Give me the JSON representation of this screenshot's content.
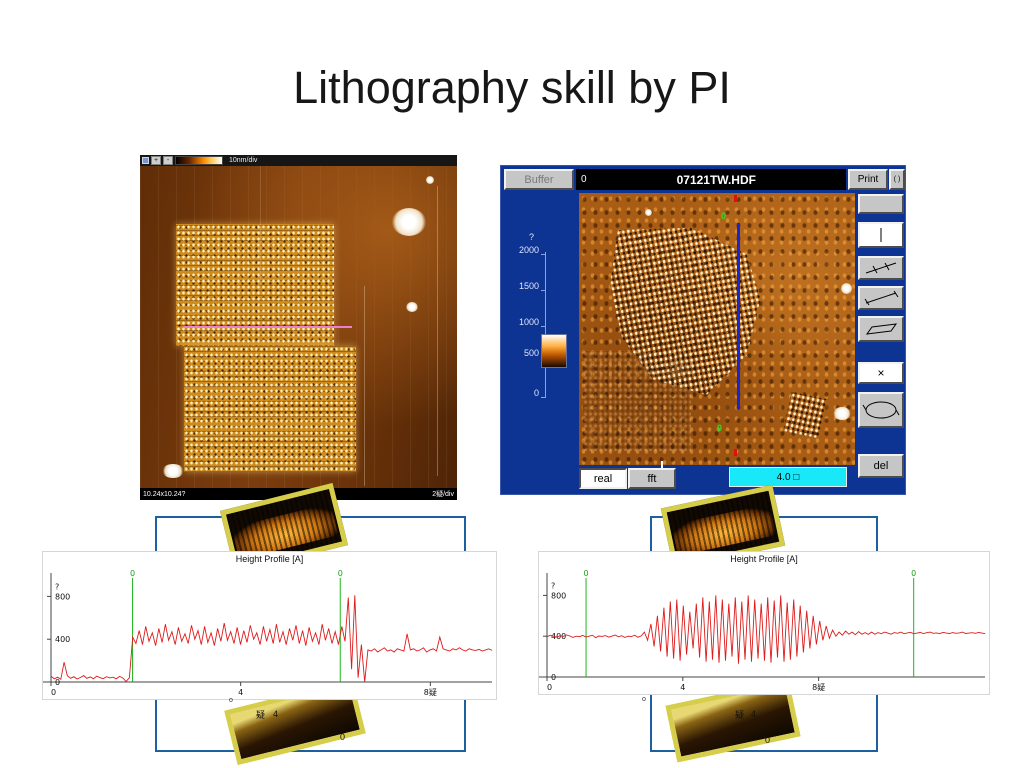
{
  "slide": {
    "title": "Lithography skill by PI"
  },
  "afm_left": {
    "btn_plus": "+",
    "btn_minus": "-",
    "scale_label": "10nm/div",
    "size_label": "10.24x10.24?",
    "div_label": "2疑/div"
  },
  "afm_window": {
    "buffer_label": "Buffer",
    "buffer_index": "0",
    "filename": "07121TW.HDF",
    "print_label": "Print",
    "paren_label": "( )",
    "y_unit": "?",
    "scale_ticks": [
      "2000",
      "1500",
      "1000",
      "500",
      "0"
    ],
    "marker_top": "0",
    "marker_bottom": "0",
    "real_label": "real",
    "fft_label": "fft",
    "range_label": "4.0 □",
    "close_label": "×",
    "del_label": "del"
  },
  "thumb_left": {
    "axis_unit": "疑",
    "axis_tick": "4",
    "corner_zero": "0",
    "o_mark": "o"
  },
  "thumb_right": {
    "axis_unit": "疑",
    "axis_tick": "4",
    "corner_zero": "0",
    "o_mark": "o"
  },
  "chart_data": [
    {
      "type": "line",
      "title": "Height Profile [A]",
      "y_unit": "?",
      "y_ticks": [
        800,
        400,
        0
      ],
      "x_ticks": [
        "0",
        "4",
        "8疑"
      ],
      "x_tick_vals": [
        0,
        4,
        8
      ],
      "xlim": [
        0,
        9.3
      ],
      "ylim": [
        0,
        1000
      ],
      "marker_label": "0",
      "markers_x": [
        1.72,
        6.1
      ],
      "color": "#dd1c1c",
      "x_start": 0,
      "x_step": 0.0689,
      "y_values": [
        55,
        30,
        45,
        25,
        185,
        60,
        35,
        50,
        28,
        42,
        60,
        35,
        48,
        30,
        55,
        40,
        32,
        50,
        38,
        45,
        30,
        52,
        36,
        5,
        40,
        420,
        360,
        480,
        350,
        520,
        380,
        460,
        340,
        500,
        370,
        540,
        390,
        470,
        350,
        510,
        380,
        450,
        360,
        530,
        400,
        480,
        350,
        520,
        370,
        460,
        340,
        500,
        380,
        550,
        390,
        470,
        360,
        510,
        350,
        480,
        370,
        530,
        400,
        460,
        350,
        520,
        380,
        490,
        360,
        540,
        370,
        470,
        350,
        500,
        390,
        530,
        360,
        480,
        340,
        510,
        380,
        460,
        350,
        540,
        390,
        500,
        360,
        470,
        350,
        520,
        380,
        790,
        120,
        810,
        40,
        350,
        0,
        300,
        290,
        310,
        280,
        300,
        320,
        290,
        300,
        280,
        310,
        300,
        290,
        450,
        300,
        310,
        290,
        300,
        320,
        280,
        300,
        310,
        290,
        420,
        310,
        300,
        290,
        310,
        300,
        320,
        300,
        290,
        310,
        300,
        295,
        305,
        290,
        300,
        310,
        295
      ]
    },
    {
      "type": "line",
      "title": "Height Profile [A]",
      "y_unit": "?",
      "y_ticks": [
        800,
        400,
        0
      ],
      "x_ticks": [
        "0",
        "4",
        "8疑"
      ],
      "x_tick_vals": [
        0,
        4,
        8
      ],
      "xlim": [
        0,
        12.9
      ],
      "ylim": [
        0,
        1000
      ],
      "marker_label": "0",
      "markers_x": [
        1.15,
        10.8
      ],
      "color": "#dd1c1c",
      "x_start": 0,
      "x_step": 0.0956,
      "y_values": [
        395,
        410,
        400,
        390,
        405,
        398,
        412,
        402,
        388,
        400,
        395,
        408,
        392,
        400,
        410,
        385,
        402,
        398,
        406,
        390,
        400,
        412,
        394,
        405,
        388,
        400,
        396,
        410,
        390,
        402,
        440,
        360,
        520,
        300,
        600,
        250,
        680,
        200,
        740,
        180,
        760,
        160,
        700,
        220,
        640,
        280,
        720,
        190,
        780,
        150,
        740,
        170,
        800,
        140,
        760,
        160,
        720,
        200,
        780,
        130,
        740,
        170,
        800,
        150,
        760,
        180,
        720,
        160,
        780,
        140,
        750,
        190,
        800,
        150,
        730,
        170,
        760,
        200,
        700,
        240,
        650,
        280,
        600,
        320,
        550,
        360,
        500,
        380,
        460,
        400,
        440,
        410,
        450,
        420,
        440,
        415,
        445,
        420,
        435,
        418,
        440,
        420,
        435,
        425,
        440,
        430,
        420,
        435,
        428,
        440,
        425,
        432,
        438,
        424,
        430,
        436,
        426,
        434,
        440,
        428,
        432,
        425,
        438,
        430,
        426,
        435,
        428,
        432,
        440,
        426,
        430,
        434,
        428,
        436,
        430,
        425
      ]
    }
  ]
}
